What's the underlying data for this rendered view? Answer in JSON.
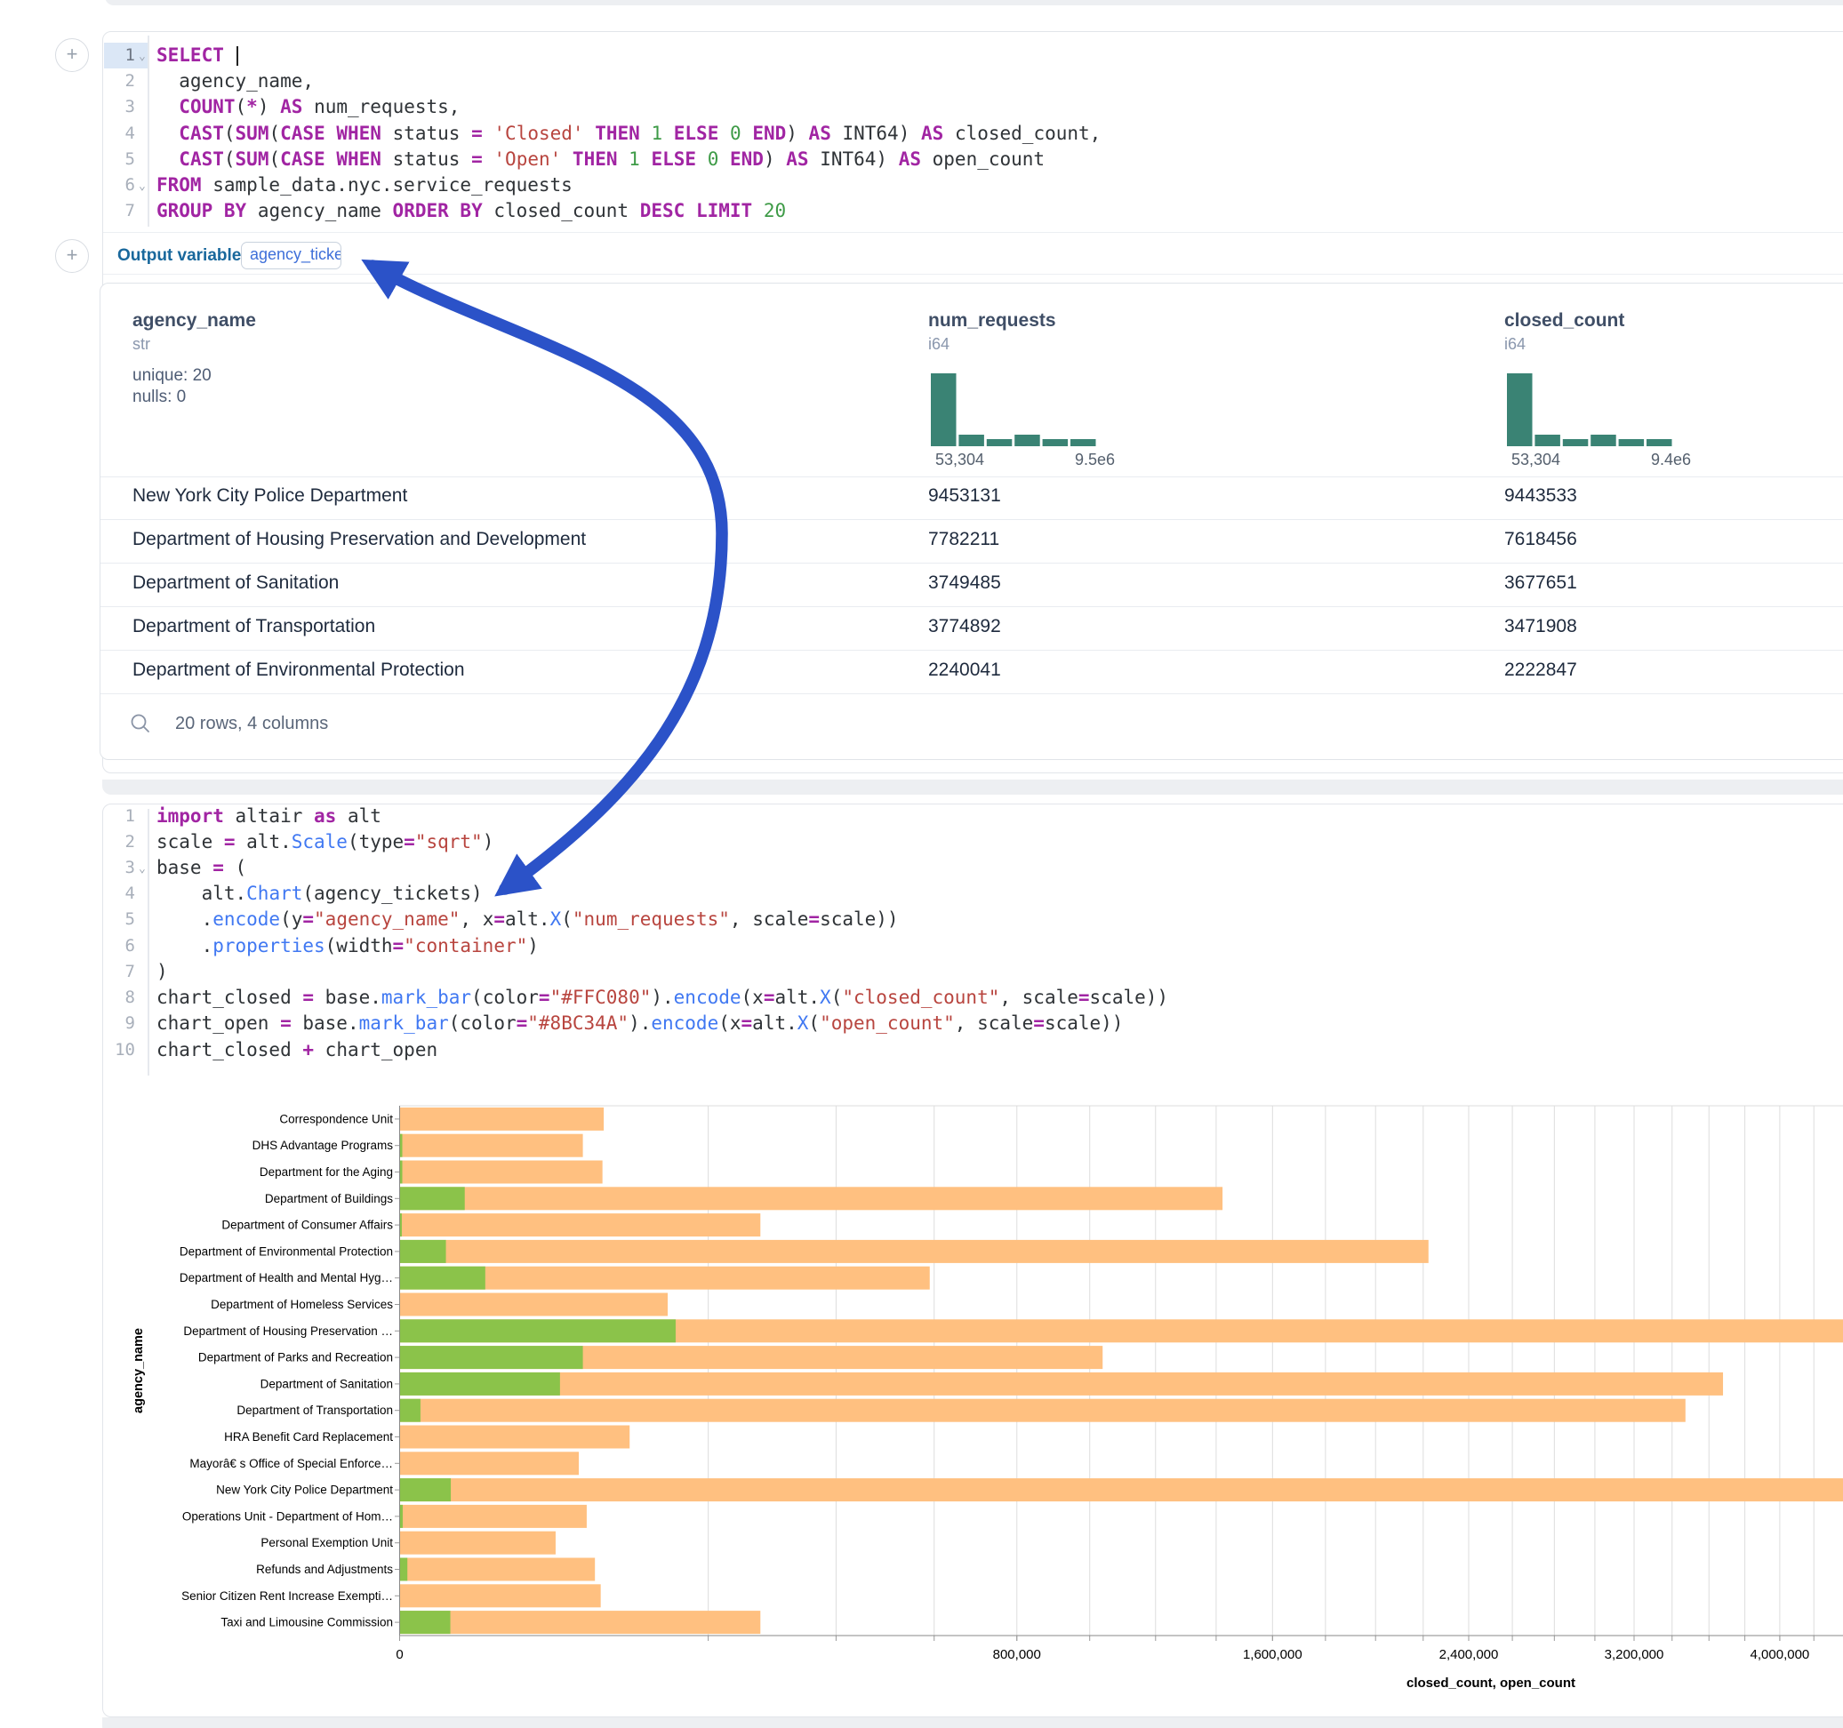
{
  "sql_cell": {
    "output_variable_label": "Output variable:",
    "output_variable_value": "agency_tickets",
    "lines": [
      {
        "n": "1",
        "fold": true,
        "cursor": true,
        "t": [
          [
            "k",
            "SELECT"
          ],
          [
            "d",
            " "
          ]
        ]
      },
      {
        "n": "2",
        "t": [
          [
            "d",
            "  agency_name,"
          ]
        ]
      },
      {
        "n": "3",
        "t": [
          [
            "d",
            "  "
          ],
          [
            "k",
            "COUNT"
          ],
          [
            "d",
            "("
          ],
          [
            "k",
            "*"
          ],
          [
            "d",
            ") "
          ],
          [
            "k",
            "AS"
          ],
          [
            "d",
            " num_requests,"
          ]
        ]
      },
      {
        "n": "4",
        "t": [
          [
            "d",
            "  "
          ],
          [
            "k",
            "CAST"
          ],
          [
            "d",
            "("
          ],
          [
            "k",
            "SUM"
          ],
          [
            "d",
            "("
          ],
          [
            "k",
            "CASE"
          ],
          [
            "d",
            " "
          ],
          [
            "k",
            "WHEN"
          ],
          [
            "d",
            " status "
          ],
          [
            "k",
            "="
          ],
          [
            "d",
            " "
          ],
          [
            "s",
            "'Closed'"
          ],
          [
            "d",
            " "
          ],
          [
            "k",
            "THEN"
          ],
          [
            "d",
            " "
          ],
          [
            "n",
            "1"
          ],
          [
            "d",
            " "
          ],
          [
            "k",
            "ELSE"
          ],
          [
            "d",
            " "
          ],
          [
            "n",
            "0"
          ],
          [
            "d",
            " "
          ],
          [
            "k",
            "END"
          ],
          [
            "d",
            ") "
          ],
          [
            "k",
            "AS"
          ],
          [
            "d",
            " INT64) "
          ],
          [
            "k",
            "AS"
          ],
          [
            "d",
            " closed_count,"
          ]
        ]
      },
      {
        "n": "5",
        "t": [
          [
            "d",
            "  "
          ],
          [
            "k",
            "CAST"
          ],
          [
            "d",
            "("
          ],
          [
            "k",
            "SUM"
          ],
          [
            "d",
            "("
          ],
          [
            "k",
            "CASE"
          ],
          [
            "d",
            " "
          ],
          [
            "k",
            "WHEN"
          ],
          [
            "d",
            " status "
          ],
          [
            "k",
            "="
          ],
          [
            "d",
            " "
          ],
          [
            "s",
            "'Open'"
          ],
          [
            "d",
            " "
          ],
          [
            "k",
            "THEN"
          ],
          [
            "d",
            " "
          ],
          [
            "n",
            "1"
          ],
          [
            "d",
            " "
          ],
          [
            "k",
            "ELSE"
          ],
          [
            "d",
            " "
          ],
          [
            "n",
            "0"
          ],
          [
            "d",
            " "
          ],
          [
            "k",
            "END"
          ],
          [
            "d",
            ") "
          ],
          [
            "k",
            "AS"
          ],
          [
            "d",
            " INT64) "
          ],
          [
            "k",
            "AS"
          ],
          [
            "d",
            " open_count"
          ]
        ]
      },
      {
        "n": "6",
        "fold": true,
        "t": [
          [
            "k",
            "FROM"
          ],
          [
            "d",
            " sample_data.nyc.service_requests"
          ]
        ]
      },
      {
        "n": "7",
        "t": [
          [
            "k",
            "GROUP"
          ],
          [
            "d",
            " "
          ],
          [
            "k",
            "BY"
          ],
          [
            "d",
            " agency_name "
          ],
          [
            "k",
            "ORDER"
          ],
          [
            "d",
            " "
          ],
          [
            "k",
            "BY"
          ],
          [
            "d",
            " closed_count "
          ],
          [
            "k",
            "DESC"
          ],
          [
            "d",
            " "
          ],
          [
            "k",
            "LIMIT"
          ],
          [
            "d",
            " "
          ],
          [
            "n",
            "20"
          ]
        ]
      }
    ]
  },
  "table_preview": {
    "columns": [
      {
        "name": "agency_name",
        "type": "str",
        "stats": [
          "unique: 20",
          "nulls: 0"
        ]
      },
      {
        "name": "num_requests",
        "type": "i64",
        "hist": [
          82,
          13,
          8,
          13,
          8,
          8
        ],
        "range_min": "53,304",
        "range_max": "9.5e6"
      },
      {
        "name": "closed_count",
        "type": "i64",
        "hist": [
          82,
          13,
          8,
          13,
          8,
          8
        ],
        "range_min": "53,304",
        "range_max": "9.4e6"
      }
    ],
    "hist_color": "#3a8374",
    "rows": [
      [
        "New York City Police Department",
        "9453131",
        "9443533"
      ],
      [
        "Department of Housing Preservation and Development",
        "7782211",
        "7618456"
      ],
      [
        "Department of Sanitation",
        "3749485",
        "3677651"
      ],
      [
        "Department of Transportation",
        "3774892",
        "3471908"
      ],
      [
        "Department of Environmental Protection",
        "2240041",
        "2222847"
      ]
    ],
    "footer": "20 rows, 4 columns"
  },
  "python_cell": {
    "lines": [
      {
        "n": "1",
        "t": [
          [
            "k",
            "import"
          ],
          [
            "d",
            " altair "
          ],
          [
            "k",
            "as"
          ],
          [
            "d",
            " alt"
          ]
        ]
      },
      {
        "n": "2",
        "t": [
          [
            "d",
            "scale "
          ],
          [
            "k",
            "="
          ],
          [
            "d",
            " alt."
          ],
          [
            "b",
            "Scale"
          ],
          [
            "d",
            "(type"
          ],
          [
            "k",
            "="
          ],
          [
            "s",
            "\"sqrt\""
          ],
          [
            "d",
            ")"
          ]
        ]
      },
      {
        "n": "3",
        "fold": true,
        "t": [
          [
            "d",
            "base "
          ],
          [
            "k",
            "="
          ],
          [
            "d",
            " ("
          ]
        ]
      },
      {
        "n": "4",
        "t": [
          [
            "d",
            "    alt."
          ],
          [
            "b",
            "Chart"
          ],
          [
            "d",
            "(agency_tickets)"
          ]
        ]
      },
      {
        "n": "5",
        "t": [
          [
            "d",
            "    ."
          ],
          [
            "b",
            "encode"
          ],
          [
            "d",
            "(y"
          ],
          [
            "k",
            "="
          ],
          [
            "s",
            "\"agency_name\""
          ],
          [
            "d",
            ", x"
          ],
          [
            "k",
            "="
          ],
          [
            "d",
            "alt."
          ],
          [
            "b",
            "X"
          ],
          [
            "d",
            "("
          ],
          [
            "s",
            "\"num_requests\""
          ],
          [
            "d",
            ", scale"
          ],
          [
            "k",
            "="
          ],
          [
            "d",
            "scale))"
          ]
        ]
      },
      {
        "n": "6",
        "t": [
          [
            "d",
            "    ."
          ],
          [
            "b",
            "properties"
          ],
          [
            "d",
            "(width"
          ],
          [
            "k",
            "="
          ],
          [
            "s",
            "\"container\""
          ],
          [
            "d",
            ")"
          ]
        ]
      },
      {
        "n": "7",
        "t": [
          [
            "d",
            ")"
          ]
        ]
      },
      {
        "n": "8",
        "t": [
          [
            "d",
            "chart_closed "
          ],
          [
            "k",
            "="
          ],
          [
            "d",
            " base."
          ],
          [
            "b",
            "mark_bar"
          ],
          [
            "d",
            "(color"
          ],
          [
            "k",
            "="
          ],
          [
            "s",
            "\"#FFC080\""
          ],
          [
            "d",
            ")."
          ],
          [
            "b",
            "encode"
          ],
          [
            "d",
            "(x"
          ],
          [
            "k",
            "="
          ],
          [
            "d",
            "alt."
          ],
          [
            "b",
            "X"
          ],
          [
            "d",
            "("
          ],
          [
            "s",
            "\"closed_count\""
          ],
          [
            "d",
            ", scale"
          ],
          [
            "k",
            "="
          ],
          [
            "d",
            "scale))"
          ]
        ]
      },
      {
        "n": "9",
        "t": [
          [
            "d",
            "chart_open "
          ],
          [
            "k",
            "="
          ],
          [
            "d",
            " base."
          ],
          [
            "b",
            "mark_bar"
          ],
          [
            "d",
            "(color"
          ],
          [
            "k",
            "="
          ],
          [
            "s",
            "\"#8BC34A\""
          ],
          [
            "d",
            ")."
          ],
          [
            "b",
            "encode"
          ],
          [
            "d",
            "(x"
          ],
          [
            "k",
            "="
          ],
          [
            "d",
            "alt."
          ],
          [
            "b",
            "X"
          ],
          [
            "d",
            "("
          ],
          [
            "s",
            "\"open_count\""
          ],
          [
            "d",
            ", scale"
          ],
          [
            "k",
            "="
          ],
          [
            "d",
            "scale))"
          ]
        ]
      },
      {
        "n": "10",
        "t": [
          [
            "d",
            "chart_closed "
          ],
          [
            "k",
            "+"
          ],
          [
            "d",
            " chart_open"
          ]
        ]
      }
    ]
  },
  "chart_data": {
    "type": "bar",
    "orientation": "horizontal",
    "x_scale": "sqrt",
    "xlabel": "closed_count, open_count",
    "ylabel": "agency_name",
    "grid": true,
    "grid_step": 200000,
    "x_tick_values": [
      0,
      800000,
      1600000,
      2400000,
      3200000,
      4000000
    ],
    "x_tick_labels": [
      "0",
      "800,000",
      "1,600,000",
      "2,400,000",
      "3,200,000",
      "4,000,000"
    ],
    "categories": [
      "Correspondence Unit",
      "DHS Advantage Programs",
      "Department for the Aging",
      "Department of Buildings",
      "Department of Consumer Affairs",
      "Department of Environmental Protection",
      "Department of Health and Mental Hyg…",
      "Department of Homeless Services",
      "Department of Housing Preservation …",
      "Department of Parks and Recreation",
      "Department of Sanitation",
      "Department of Transportation",
      "HRA Benefit Card Replacement",
      "Mayorâ€ s Office of Special Enforce…",
      "New York City Police Department",
      "Operations Unit - Department of Hom…",
      "Personal Exemption Unit",
      "Refunds and Adjustments",
      "Senior Citizen Rent Increase Exempti…",
      "Taxi and Limousine Commission"
    ],
    "series": [
      {
        "name": "closed_count",
        "color": "#FFC080",
        "values": [
          87500,
          70500,
          86400,
          1422000,
          273300,
          2222847,
          590100,
          150900,
          7618456,
          1037800,
          3677651,
          3471908,
          111100,
          67400,
          9443533,
          73500,
          51100,
          80100,
          84900,
          273300
        ]
      },
      {
        "name": "open_count",
        "color": "#8BC34A",
        "values": [
          0,
          15,
          15,
          8900,
          10,
          4500,
          15400,
          0,
          160000,
          70500,
          54000,
          910,
          0,
          0,
          5500,
          20,
          0,
          126,
          0,
          5400
        ]
      }
    ]
  },
  "annotation_arrow": {
    "color": "#2b52c8"
  }
}
